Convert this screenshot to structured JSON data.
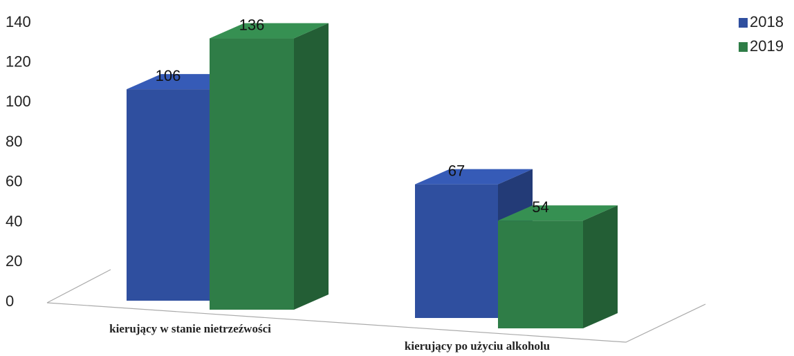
{
  "chart_data": {
    "type": "bar3d",
    "categories": [
      "kierujący w stanie nietrzeźwości",
      "kierujący po użyciu alkoholu"
    ],
    "series": [
      {
        "name": "2018",
        "color": "#2f4f9f",
        "values": [
          106,
          67
        ]
      },
      {
        "name": "2019",
        "color": "#2f7d47",
        "values": [
          136,
          54
        ]
      }
    ],
    "ylim": [
      0,
      140
    ],
    "yticks": [
      0,
      20,
      40,
      60,
      80,
      100,
      120,
      140
    ],
    "legend": "top-right",
    "grid": false
  }
}
